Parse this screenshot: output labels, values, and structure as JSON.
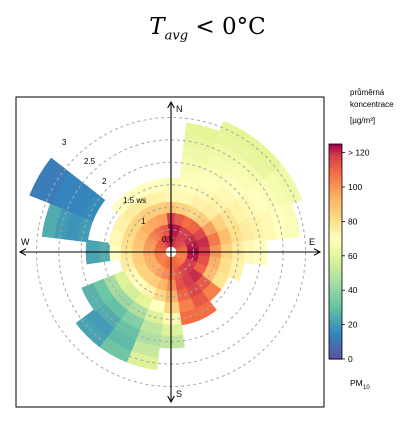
{
  "chart_data": {
    "type": "polar-annulus",
    "title": {
      "T": "T",
      "sub": "avg",
      "rest": " < 0°C"
    },
    "compass": {
      "north": "N",
      "east": "E",
      "south": "S",
      "west": "W"
    },
    "radial_ticks": [
      "0.5",
      "1",
      "1.5 ws",
      "2",
      "2.5",
      "3"
    ],
    "radial_values": [
      0.5,
      1,
      1.5,
      2,
      2.5,
      3
    ],
    "r_max": 3.3,
    "legend": {
      "title_lines": [
        "průměrná",
        "koncentrace",
        "[µg/m³]"
      ],
      "ticks": [
        "0",
        "20",
        "40",
        "60",
        "80",
        "100",
        "> 120"
      ],
      "tick_values": [
        0,
        20,
        40,
        60,
        80,
        100,
        120
      ],
      "range": [
        0,
        125
      ],
      "footer": "PM",
      "footer_sub": "10"
    },
    "colorscale": [
      [
        0,
        "#5e4fa2"
      ],
      [
        15,
        "#3288bd"
      ],
      [
        30,
        "#66c2a5"
      ],
      [
        45,
        "#abdda4"
      ],
      [
        60,
        "#e6f598"
      ],
      [
        70,
        "#ffffbf"
      ],
      [
        80,
        "#fee08b"
      ],
      [
        95,
        "#fdae61"
      ],
      [
        108,
        "#f46d43"
      ],
      [
        118,
        "#d53e4f"
      ],
      [
        125,
        "#9e0142"
      ]
    ],
    "grid": true,
    "note": "concentration surface by wind direction (deg from N) and wind speed (ws)",
    "x_direction_deg": [
      0,
      15,
      30,
      45,
      60,
      75,
      90,
      105,
      120,
      135,
      150,
      165,
      180,
      195,
      210,
      225,
      240,
      255,
      270,
      285,
      300,
      315,
      330,
      345
    ],
    "y_speed_ws": [
      0.25,
      0.5,
      0.75,
      1,
      1.25,
      1.5,
      1.75,
      2,
      2.25,
      2.5,
      2.75,
      3,
      3.25
    ],
    "values_pm10": [
      [
        122,
        124,
        118,
        88,
        72,
        68,
        null,
        null,
        null,
        null,
        null,
        null,
        null
      ],
      [
        120,
        122,
        112,
        84,
        72,
        70,
        68,
        66,
        64,
        62,
        60,
        null,
        null
      ],
      [
        118,
        118,
        108,
        82,
        74,
        72,
        70,
        68,
        66,
        64,
        62,
        60,
        null
      ],
      [
        116,
        118,
        110,
        86,
        76,
        74,
        72,
        70,
        68,
        66,
        62,
        60,
        null
      ],
      [
        114,
        120,
        116,
        98,
        84,
        78,
        74,
        72,
        70,
        68,
        66,
        64,
        null
      ],
      [
        110,
        122,
        120,
        106,
        90,
        80,
        76,
        74,
        72,
        70,
        68,
        null,
        null
      ],
      [
        106,
        124,
        118,
        100,
        84,
        76,
        72,
        70,
        null,
        null,
        null,
        null,
        null
      ],
      [
        104,
        122,
        114,
        94,
        80,
        74,
        null,
        null,
        null,
        null,
        null,
        null,
        null
      ],
      [
        104,
        118,
        110,
        90,
        78,
        null,
        null,
        null,
        null,
        null,
        null,
        null,
        null
      ],
      [
        106,
        118,
        120,
        112,
        104,
        null,
        null,
        null,
        null,
        null,
        null,
        null,
        null
      ],
      [
        108,
        116,
        118,
        116,
        112,
        108,
        null,
        null,
        null,
        null,
        null,
        null,
        null
      ],
      [
        110,
        112,
        114,
        110,
        104,
        108,
        null,
        null,
        null,
        null,
        null,
        null,
        null
      ],
      [
        110,
        108,
        102,
        94,
        84,
        72,
        58,
        50,
        null,
        null,
        null,
        null,
        null
      ],
      [
        108,
        102,
        92,
        82,
        70,
        58,
        50,
        46,
        52,
        58,
        null,
        null,
        null
      ],
      [
        106,
        98,
        86,
        74,
        60,
        46,
        36,
        30,
        28,
        32,
        null,
        null,
        null
      ],
      [
        104,
        94,
        84,
        70,
        56,
        42,
        30,
        24,
        20,
        22,
        null,
        null,
        null
      ],
      [
        104,
        94,
        84,
        72,
        58,
        44,
        32,
        26,
        null,
        null,
        null,
        null,
        null
      ],
      [
        104,
        94,
        86,
        76,
        null,
        null,
        null,
        null,
        null,
        null,
        null,
        null,
        null
      ],
      [
        106,
        96,
        86,
        78,
        70,
        24,
        22,
        null,
        null,
        null,
        null,
        null,
        null
      ],
      [
        108,
        98,
        88,
        80,
        72,
        null,
        null,
        20,
        18,
        20,
        24,
        null,
        null
      ],
      [
        110,
        100,
        90,
        82,
        74,
        null,
        null,
        16,
        14,
        14,
        14,
        12,
        12
      ],
      [
        112,
        104,
        94,
        84,
        76,
        70,
        null,
        null,
        null,
        null,
        null,
        null,
        null
      ],
      [
        116,
        108,
        96,
        86,
        76,
        70,
        null,
        null,
        null,
        null,
        null,
        null,
        null
      ],
      [
        120,
        112,
        98,
        86,
        74,
        70,
        null,
        null,
        null,
        null,
        null,
        null,
        null
      ]
    ]
  }
}
